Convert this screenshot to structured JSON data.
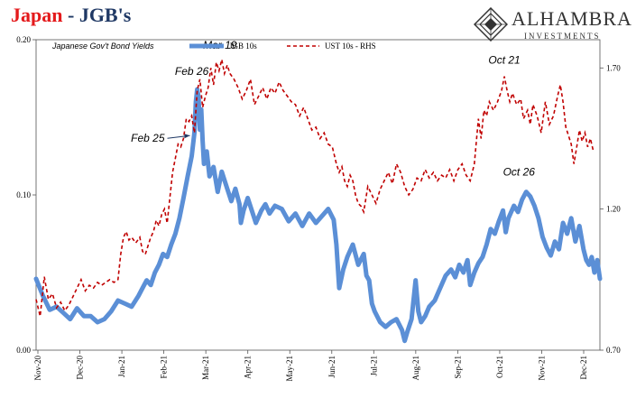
{
  "header": {
    "title_part1": "Japan",
    "title_sep": " - ",
    "title_part2": "JGB's",
    "subtitle": "Japanese Gov't Bond Yields"
  },
  "logo": {
    "word": "ALHAMBRA",
    "sub": "INVESTMENTS"
  },
  "colors": {
    "jgb": "#5b8fd6",
    "ust": "#c00000",
    "title_red": "#e41a1c",
    "title_navy": "#1f3864"
  },
  "chart_data": {
    "type": "line",
    "x_tick_labels": [
      "Nov-20",
      "Dec-20",
      "Jan-21",
      "Feb-21",
      "Mar-21",
      "Apr-21",
      "May-21",
      "Jun-21",
      "Jul-21",
      "Aug-21",
      "Sep-21",
      "Oct-21",
      "Nov-21",
      "Dec-21"
    ],
    "y_left": {
      "ticks": [
        "0.00",
        "0.10",
        "0.20"
      ],
      "ylim": [
        0,
        0.2
      ]
    },
    "y_right": {
      "ticks": [
        "0.70",
        "1.20",
        "1.70"
      ],
      "ylim": [
        0.7,
        1.8
      ]
    },
    "series": [
      {
        "name": "JGB 10s",
        "axis": "left",
        "style": "solid",
        "values": [
          [
            0,
            0.046
          ],
          [
            5,
            0.035
          ],
          [
            10,
            0.026
          ],
          [
            15,
            0.028
          ],
          [
            20,
            0.024
          ],
          [
            25,
            0.02
          ],
          [
            30,
            0.027
          ],
          [
            35,
            0.022
          ],
          [
            40,
            0.022
          ],
          [
            45,
            0.018
          ],
          [
            50,
            0.02
          ],
          [
            55,
            0.025
          ],
          [
            60,
            0.032
          ],
          [
            65,
            0.03
          ],
          [
            70,
            0.028
          ],
          [
            75,
            0.035
          ],
          [
            78,
            0.04
          ],
          [
            81,
            0.045
          ],
          [
            84,
            0.042
          ],
          [
            87,
            0.05
          ],
          [
            90,
            0.055
          ],
          [
            93,
            0.062
          ],
          [
            96,
            0.06
          ],
          [
            99,
            0.068
          ],
          [
            102,
            0.075
          ],
          [
            105,
            0.085
          ],
          [
            108,
            0.098
          ],
          [
            111,
            0.112
          ],
          [
            114,
            0.125
          ],
          [
            116,
            0.14
          ],
          [
            117,
            0.16
          ],
          [
            118,
            0.168
          ],
          [
            119,
            0.163
          ],
          [
            120,
            0.142
          ],
          [
            121,
            0.155
          ],
          [
            122,
            0.135
          ],
          [
            123,
            0.12
          ],
          [
            125,
            0.128
          ],
          [
            127,
            0.112
          ],
          [
            130,
            0.118
          ],
          [
            133,
            0.102
          ],
          [
            136,
            0.115
          ],
          [
            140,
            0.104
          ],
          [
            143,
            0.096
          ],
          [
            146,
            0.104
          ],
          [
            149,
            0.094
          ],
          [
            150,
            0.082
          ],
          [
            152,
            0.09
          ],
          [
            155,
            0.098
          ],
          [
            158,
            0.09
          ],
          [
            161,
            0.082
          ],
          [
            165,
            0.09
          ],
          [
            168,
            0.094
          ],
          [
            171,
            0.088
          ],
          [
            175,
            0.093
          ],
          [
            180,
            0.091
          ],
          [
            185,
            0.083
          ],
          [
            190,
            0.088
          ],
          [
            195,
            0.08
          ],
          [
            200,
            0.088
          ],
          [
            205,
            0.082
          ],
          [
            210,
            0.087
          ],
          [
            214,
            0.091
          ],
          [
            218,
            0.084
          ],
          [
            220,
            0.068
          ],
          [
            222,
            0.04
          ],
          [
            225,
            0.052
          ],
          [
            228,
            0.06
          ],
          [
            232,
            0.068
          ],
          [
            236,
            0.055
          ],
          [
            240,
            0.062
          ],
          [
            242,
            0.048
          ],
          [
            244,
            0.045
          ],
          [
            246,
            0.03
          ],
          [
            248,
            0.025
          ],
          [
            252,
            0.018
          ],
          [
            256,
            0.015
          ],
          [
            260,
            0.018
          ],
          [
            264,
            0.02
          ],
          [
            268,
            0.013
          ],
          [
            270,
            0.006
          ],
          [
            272,
            0.012
          ],
          [
            275,
            0.02
          ],
          [
            278,
            0.045
          ],
          [
            280,
            0.025
          ],
          [
            282,
            0.018
          ],
          [
            285,
            0.022
          ],
          [
            288,
            0.028
          ],
          [
            292,
            0.032
          ],
          [
            296,
            0.04
          ],
          [
            300,
            0.048
          ],
          [
            304,
            0.052
          ],
          [
            307,
            0.047
          ],
          [
            310,
            0.055
          ],
          [
            313,
            0.05
          ],
          [
            316,
            0.058
          ],
          [
            318,
            0.042
          ],
          [
            321,
            0.05
          ],
          [
            324,
            0.056
          ],
          [
            327,
            0.06
          ],
          [
            330,
            0.068
          ],
          [
            333,
            0.078
          ],
          [
            336,
            0.075
          ],
          [
            339,
            0.083
          ],
          [
            342,
            0.09
          ],
          [
            344,
            0.076
          ],
          [
            346,
            0.085
          ],
          [
            350,
            0.093
          ],
          [
            353,
            0.089
          ],
          [
            356,
            0.097
          ],
          [
            359,
            0.102
          ],
          [
            362,
            0.099
          ],
          [
            365,
            0.093
          ],
          [
            368,
            0.085
          ],
          [
            371,
            0.073
          ],
          [
            374,
            0.066
          ],
          [
            377,
            0.061
          ],
          [
            380,
            0.07
          ],
          [
            383,
            0.065
          ],
          [
            386,
            0.082
          ],
          [
            389,
            0.075
          ],
          [
            392,
            0.085
          ],
          [
            395,
            0.07
          ],
          [
            398,
            0.08
          ],
          [
            401,
            0.065
          ],
          [
            403,
            0.058
          ],
          [
            405,
            0.055
          ],
          [
            407,
            0.06
          ],
          [
            409,
            0.05
          ],
          [
            411,
            0.058
          ],
          [
            413,
            0.046
          ]
        ]
      },
      {
        "name": "UST 10s - RHS",
        "axis": "right",
        "style": "dashed",
        "values": [
          [
            0,
            0.88
          ],
          [
            3,
            0.82
          ],
          [
            6,
            0.96
          ],
          [
            9,
            0.88
          ],
          [
            12,
            0.9
          ],
          [
            15,
            0.85
          ],
          [
            18,
            0.87
          ],
          [
            21,
            0.84
          ],
          [
            24,
            0.86
          ],
          [
            27,
            0.89
          ],
          [
            30,
            0.92
          ],
          [
            33,
            0.95
          ],
          [
            36,
            0.91
          ],
          [
            39,
            0.93
          ],
          [
            42,
            0.92
          ],
          [
            45,
            0.94
          ],
          [
            48,
            0.93
          ],
          [
            51,
            0.94
          ],
          [
            54,
            0.95
          ],
          [
            57,
            0.94
          ],
          [
            60,
            0.95
          ],
          [
            62,
            1.04
          ],
          [
            64,
            1.1
          ],
          [
            66,
            1.12
          ],
          [
            68,
            1.09
          ],
          [
            70,
            1.1
          ],
          [
            73,
            1.08
          ],
          [
            76,
            1.1
          ],
          [
            78,
            1.05
          ],
          [
            80,
            1.04
          ],
          [
            82,
            1.07
          ],
          [
            84,
            1.1
          ],
          [
            86,
            1.12
          ],
          [
            88,
            1.16
          ],
          [
            90,
            1.14
          ],
          [
            92,
            1.18
          ],
          [
            94,
            1.2
          ],
          [
            96,
            1.15
          ],
          [
            98,
            1.24
          ],
          [
            100,
            1.33
          ],
          [
            102,
            1.38
          ],
          [
            104,
            1.43
          ],
          [
            106,
            1.42
          ],
          [
            108,
            1.45
          ],
          [
            110,
            1.52
          ],
          [
            112,
            1.51
          ],
          [
            114,
            1.53
          ],
          [
            116,
            1.47
          ],
          [
            118,
            1.62
          ],
          [
            120,
            1.66
          ],
          [
            122,
            1.56
          ],
          [
            124,
            1.6
          ],
          [
            126,
            1.63
          ],
          [
            128,
            1.7
          ],
          [
            130,
            1.64
          ],
          [
            132,
            1.72
          ],
          [
            134,
            1.69
          ],
          [
            136,
            1.73
          ],
          [
            138,
            1.68
          ],
          [
            140,
            1.71
          ],
          [
            142,
            1.68
          ],
          [
            145,
            1.66
          ],
          [
            148,
            1.63
          ],
          [
            151,
            1.59
          ],
          [
            154,
            1.62
          ],
          [
            157,
            1.66
          ],
          [
            160,
            1.57
          ],
          [
            163,
            1.6
          ],
          [
            166,
            1.63
          ],
          [
            169,
            1.59
          ],
          [
            172,
            1.63
          ],
          [
            175,
            1.61
          ],
          [
            178,
            1.65
          ],
          [
            181,
            1.62
          ],
          [
            184,
            1.6
          ],
          [
            187,
            1.58
          ],
          [
            190,
            1.57
          ],
          [
            193,
            1.53
          ],
          [
            196,
            1.56
          ],
          [
            199,
            1.52
          ],
          [
            202,
            1.48
          ],
          [
            205,
            1.49
          ],
          [
            208,
            1.45
          ],
          [
            211,
            1.47
          ],
          [
            214,
            1.43
          ],
          [
            217,
            1.42
          ],
          [
            220,
            1.36
          ],
          [
            222,
            1.33
          ],
          [
            224,
            1.35
          ],
          [
            226,
            1.3
          ],
          [
            228,
            1.28
          ],
          [
            230,
            1.32
          ],
          [
            232,
            1.3
          ],
          [
            234,
            1.25
          ],
          [
            236,
            1.22
          ],
          [
            238,
            1.21
          ],
          [
            240,
            1.19
          ],
          [
            243,
            1.28
          ],
          [
            246,
            1.25
          ],
          [
            249,
            1.22
          ],
          [
            252,
            1.27
          ],
          [
            255,
            1.3
          ],
          [
            258,
            1.33
          ],
          [
            261,
            1.29
          ],
          [
            264,
            1.36
          ],
          [
            267,
            1.33
          ],
          [
            270,
            1.28
          ],
          [
            273,
            1.25
          ],
          [
            276,
            1.27
          ],
          [
            279,
            1.31
          ],
          [
            282,
            1.3
          ],
          [
            285,
            1.34
          ],
          [
            288,
            1.31
          ],
          [
            291,
            1.33
          ],
          [
            294,
            1.3
          ],
          [
            297,
            1.32
          ],
          [
            300,
            1.31
          ],
          [
            303,
            1.34
          ],
          [
            306,
            1.3
          ],
          [
            309,
            1.34
          ],
          [
            312,
            1.36
          ],
          [
            315,
            1.32
          ],
          [
            318,
            1.3
          ],
          [
            321,
            1.36
          ],
          [
            324,
            1.52
          ],
          [
            326,
            1.45
          ],
          [
            328,
            1.55
          ],
          [
            330,
            1.53
          ],
          [
            332,
            1.58
          ],
          [
            335,
            1.55
          ],
          [
            338,
            1.58
          ],
          [
            341,
            1.62
          ],
          [
            343,
            1.67
          ],
          [
            345,
            1.62
          ],
          [
            347,
            1.58
          ],
          [
            349,
            1.61
          ],
          [
            352,
            1.57
          ],
          [
            355,
            1.59
          ],
          [
            357,
            1.52
          ],
          [
            360,
            1.55
          ],
          [
            362,
            1.5
          ],
          [
            364,
            1.57
          ],
          [
            367,
            1.53
          ],
          [
            370,
            1.47
          ],
          [
            373,
            1.58
          ],
          [
            376,
            1.5
          ],
          [
            379,
            1.53
          ],
          [
            382,
            1.6
          ],
          [
            384,
            1.64
          ],
          [
            386,
            1.58
          ],
          [
            388,
            1.49
          ],
          [
            390,
            1.46
          ],
          [
            392,
            1.43
          ],
          [
            394,
            1.36
          ],
          [
            396,
            1.42
          ],
          [
            398,
            1.48
          ],
          [
            400,
            1.44
          ],
          [
            402,
            1.47
          ],
          [
            404,
            1.42
          ],
          [
            406,
            1.45
          ],
          [
            408,
            1.41
          ]
        ]
      }
    ],
    "annotations": [
      {
        "text": "Feb 26",
        "series": "JGB 10s",
        "x": 118
      },
      {
        "text": "Mar 19",
        "series": "UST 10s - RHS",
        "x": 136
      },
      {
        "text": "Feb 25",
        "series": "JGB 10s",
        "x": 115
      },
      {
        "text": "Oct 21",
        "series": "UST 10s - RHS",
        "x": 343
      },
      {
        "text": "Oct 26",
        "series": "JGB 10s",
        "x": 359
      }
    ],
    "legend_position": "top-center",
    "grid": false
  }
}
